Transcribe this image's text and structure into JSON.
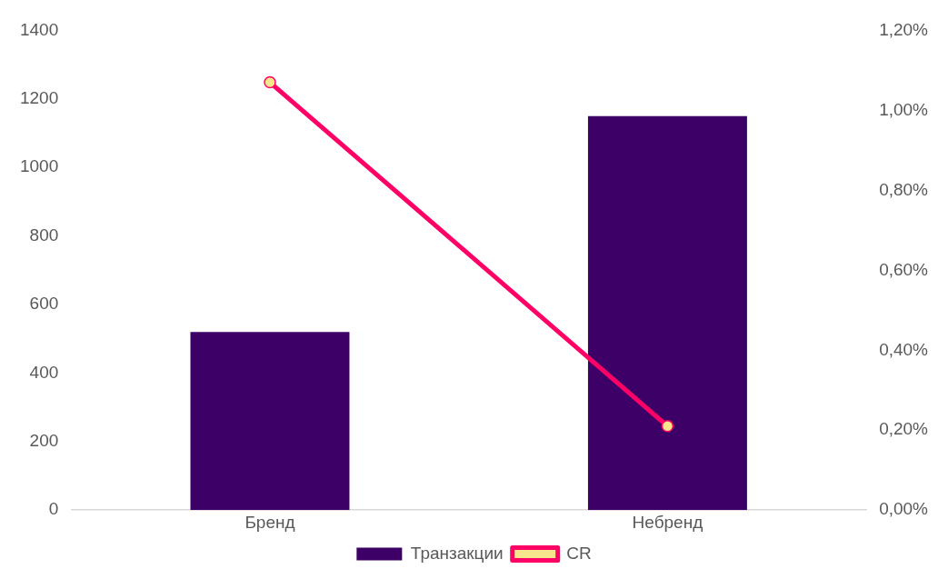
{
  "chart_data": {
    "type": "bar",
    "categories": [
      "Бренд",
      "Небренд"
    ],
    "series": [
      {
        "name": "Транзакции",
        "color": "#3d0066",
        "values": [
          520,
          1150
        ]
      },
      {
        "name": "CR",
        "type": "line",
        "axis": "y2",
        "color": "#ff0066",
        "marker": "circle",
        "values": [
          1.07,
          0.21
        ]
      }
    ],
    "ylim": [
      0,
      1400
    ],
    "yticks": [
      0,
      200,
      400,
      600,
      800,
      1000,
      1200,
      1400
    ],
    "y2lim": [
      0,
      1.2
    ],
    "y2ticks": [
      {
        "value": 0,
        "label": "0,00%"
      },
      {
        "value": 0.2,
        "label": "0,20%"
      },
      {
        "value": 0.4,
        "label": "0,40%"
      },
      {
        "value": 0.6,
        "label": "0,60%"
      },
      {
        "value": 0.8,
        "label": "0,80%"
      },
      {
        "value": 1.0,
        "label": "1,00%"
      },
      {
        "value": 1.2,
        "label": "1,20%"
      }
    ],
    "grid": false,
    "legend": "bottom"
  }
}
